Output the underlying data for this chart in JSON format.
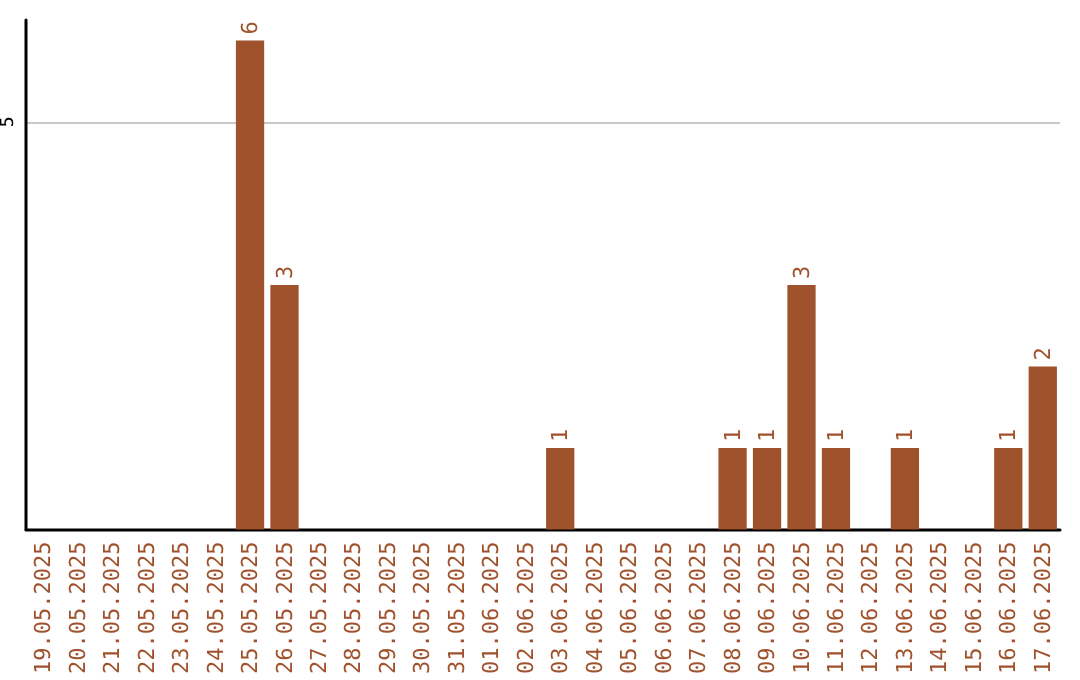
{
  "chart_data": {
    "type": "bar",
    "categories": [
      "19.05.2025",
      "20.05.2025",
      "21.05.2025",
      "22.05.2025",
      "23.05.2025",
      "24.05.2025",
      "25.05.2025",
      "26.05.2025",
      "27.05.2025",
      "28.05.2025",
      "29.05.2025",
      "30.05.2025",
      "31.05.2025",
      "01.06.2025",
      "02.06.2025",
      "03.06.2025",
      "04.06.2025",
      "05.06.2025",
      "06.06.2025",
      "07.06.2025",
      "08.06.2025",
      "09.06.2025",
      "10.06.2025",
      "11.06.2025",
      "12.06.2025",
      "13.06.2025",
      "14.06.2025",
      "15.06.2025",
      "16.06.2025",
      "17.06.2025"
    ],
    "values": [
      0,
      0,
      0,
      0,
      0,
      0,
      6,
      3,
      0,
      0,
      0,
      0,
      0,
      0,
      0,
      1,
      0,
      0,
      0,
      0,
      1,
      1,
      3,
      1,
      0,
      1,
      0,
      0,
      1,
      2
    ],
    "value_labels": [
      null,
      null,
      null,
      null,
      null,
      null,
      "6",
      "3",
      null,
      null,
      null,
      null,
      null,
      null,
      null,
      "1",
      null,
      null,
      null,
      null,
      "1",
      "1",
      "3",
      "1",
      null,
      "1",
      null,
      null,
      "1",
      "2"
    ],
    "color": "#a0522d",
    "ylim": [
      0,
      6.25
    ],
    "yticks": [
      5
    ],
    "grid": "y"
  }
}
